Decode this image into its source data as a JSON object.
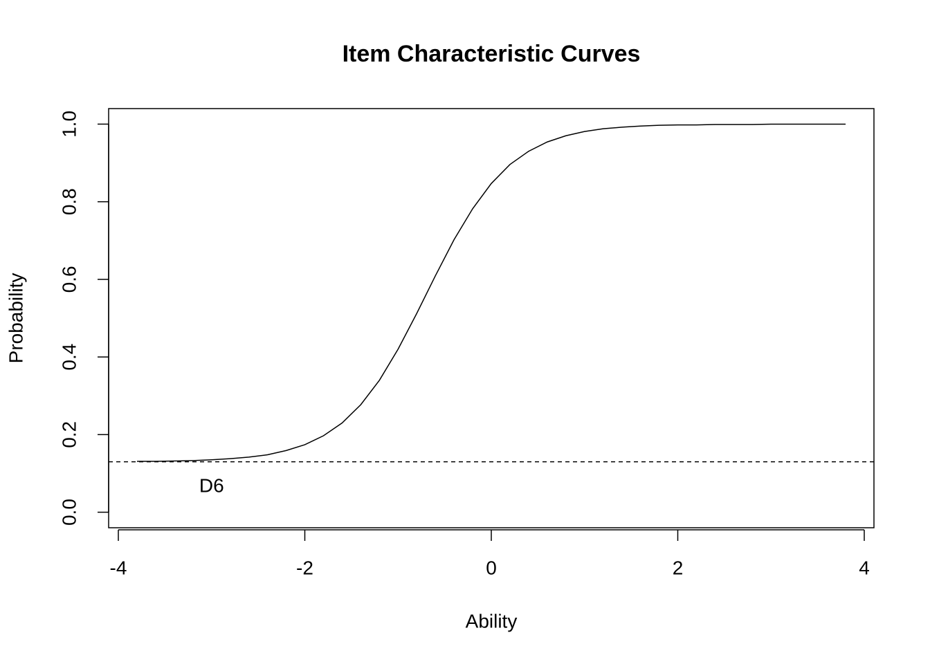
{
  "chart_data": {
    "type": "line",
    "title": "Item Characteristic Curves",
    "x_label": "Ability",
    "y_label": "Probability",
    "x": [
      -3.8,
      -3.6,
      -3.4,
      -3.2,
      -3.0,
      -2.8,
      -2.6,
      -2.4,
      -2.2,
      -2.0,
      -1.8,
      -1.6,
      -1.4,
      -1.2,
      -1.0,
      -0.8,
      -0.6,
      -0.4,
      -0.2,
      0,
      0.2,
      0.4,
      0.6,
      0.8,
      1.0,
      1.2,
      1.4,
      1.6,
      1.8,
      2.0,
      2.2,
      2.4,
      2.6,
      2.8,
      3.0,
      3.2,
      3.4,
      3.6,
      3.8
    ],
    "values": [
      0.131,
      0.131,
      0.132,
      0.133,
      0.135,
      0.138,
      0.142,
      0.148,
      0.159,
      0.174,
      0.197,
      0.23,
      0.277,
      0.34,
      0.42,
      0.512,
      0.609,
      0.702,
      0.782,
      0.847,
      0.896,
      0.93,
      0.954,
      0.97,
      0.981,
      0.988,
      0.992,
      0.995,
      0.997,
      0.998,
      0.998,
      0.999,
      0.999,
      0.999,
      1.0,
      1.0,
      1.0,
      1.0,
      1.0
    ],
    "color": "#000000",
    "reference_line": {
      "y": 0.13,
      "style": "dashed"
    },
    "annotations": [
      {
        "text": "D6",
        "x": -3.0,
        "y": 0.065
      }
    ],
    "xlim": [
      -4.104,
      4.104
    ],
    "xticks": [
      -4,
      -2,
      0,
      2,
      4
    ],
    "ylim": [
      -0.04,
      1.04
    ],
    "yticks": [
      {
        "value": 0,
        "label": "0.0"
      },
      0.2,
      0.4,
      0.6,
      0.8,
      {
        "value": 1,
        "label": "1.0"
      }
    ],
    "grid": false
  }
}
